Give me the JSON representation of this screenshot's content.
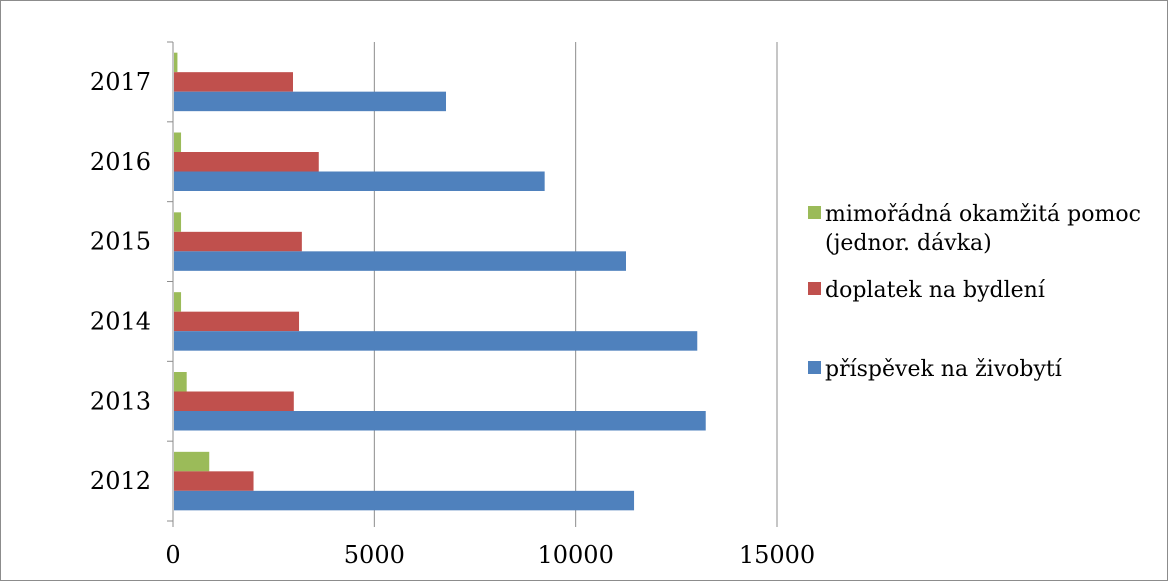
{
  "chart_data": {
    "type": "bar",
    "orientation": "horizontal",
    "categories": [
      "2012",
      "2013",
      "2014",
      "2015",
      "2016",
      "2017"
    ],
    "series": [
      {
        "name": "příspěvek na živobytí",
        "color": "#4f81bd",
        "values": [
          11450,
          13230,
          13020,
          11250,
          9230,
          6780
        ]
      },
      {
        "name": "doplatek na bydlení",
        "color": "#c0504d",
        "values": [
          2000,
          3000,
          3130,
          3200,
          3620,
          2980
        ]
      },
      {
        "name": "mimořádná okamžitá pomoc (jednor. dávka)",
        "color": "#9bbb59",
        "values": [
          900,
          340,
          200,
          200,
          200,
          110
        ]
      }
    ],
    "xlim": [
      0,
      15000
    ],
    "x_ticks": [
      "0",
      "5000",
      "10000",
      "15000"
    ],
    "grid": "vertical",
    "legend_position": "right",
    "legend_entries": [
      {
        "series": 2,
        "lines": [
          "mimořádná okamžitá pomoc",
          "(jednor. dávka)"
        ]
      },
      {
        "series": 1,
        "lines": [
          "doplatek na bydlení"
        ]
      },
      {
        "series": 0,
        "lines": [
          "příspěvek na živobytí"
        ]
      }
    ]
  }
}
